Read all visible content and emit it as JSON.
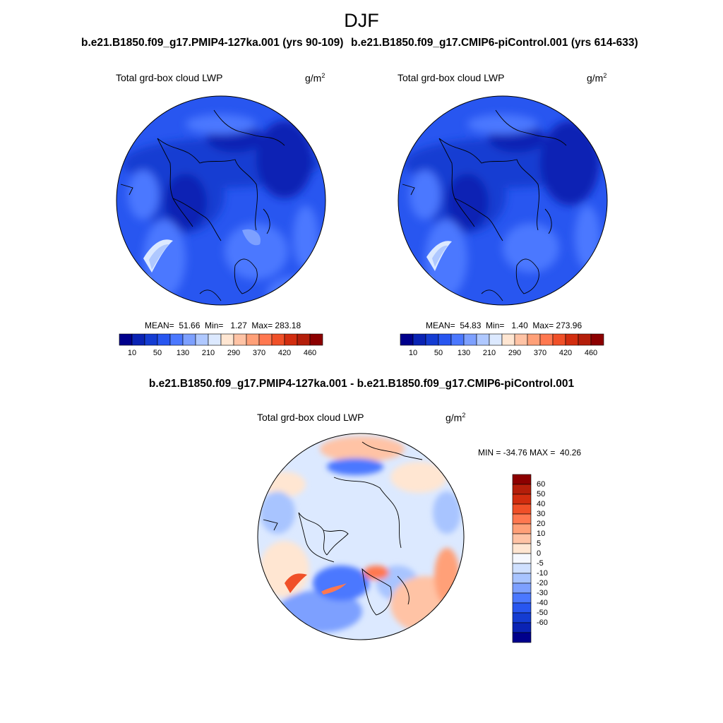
{
  "season": "DJF",
  "panels": [
    {
      "run_title": "b.e21.B1850.f09_g17.PMIP4-127ka.001 (yrs 90-109)",
      "variable": "Total grd-box cloud LWP",
      "units_base": "g/m",
      "units_sup": "2",
      "stats": "MEAN=  51.66  Min=   1.27  Max= 283.18"
    },
    {
      "run_title": "b.e21.B1850.f09_g17.CMIP6-piControl.001 (yrs 614-633)",
      "variable": "Total grd-box cloud LWP",
      "units_base": "g/m",
      "units_sup": "2",
      "stats": "MEAN=  54.83  Min=   1.40  Max= 273.96"
    }
  ],
  "abs_colorbar": {
    "tick_labels": [
      "10",
      "50",
      "130",
      "210",
      "290",
      "370",
      "420",
      "460"
    ],
    "colors": [
      "#00008c",
      "#0a23b4",
      "#143cd2",
      "#2856f0",
      "#4b78ff",
      "#7da0ff",
      "#afc8ff",
      "#dce9ff",
      "#ffe6d2",
      "#ffc3a5",
      "#ffa078",
      "#ff7850",
      "#f05028",
      "#d22d0f",
      "#b41e0a",
      "#8c0000"
    ]
  },
  "diff_panel": {
    "title": "b.e21.B1850.f09_g17.PMIP4-127ka.001 - b.e21.B1850.f09_g17.CMIP6-piControl.001",
    "variable": "Total grd-box cloud LWP",
    "units_base": "g/m",
    "units_sup": "2",
    "minmax": "MIN = -34.76 MAX =  40.26"
  },
  "diff_colorbar": {
    "labels": [
      "60",
      "50",
      "40",
      "30",
      "20",
      "10",
      "5",
      "0",
      "-5",
      "-10",
      "-20",
      "-30",
      "-40",
      "-50",
      "-60"
    ],
    "colors": [
      "#8c0000",
      "#b41e0a",
      "#d22d0f",
      "#f05028",
      "#ff7850",
      "#ffa078",
      "#ffc3a5",
      "#ffe6d2",
      "#f5f8ff",
      "#cfe0ff",
      "#a8c4ff",
      "#7da0ff",
      "#4b78ff",
      "#2856f0",
      "#143cd2",
      "#0a23b4",
      "#00008c"
    ]
  }
}
